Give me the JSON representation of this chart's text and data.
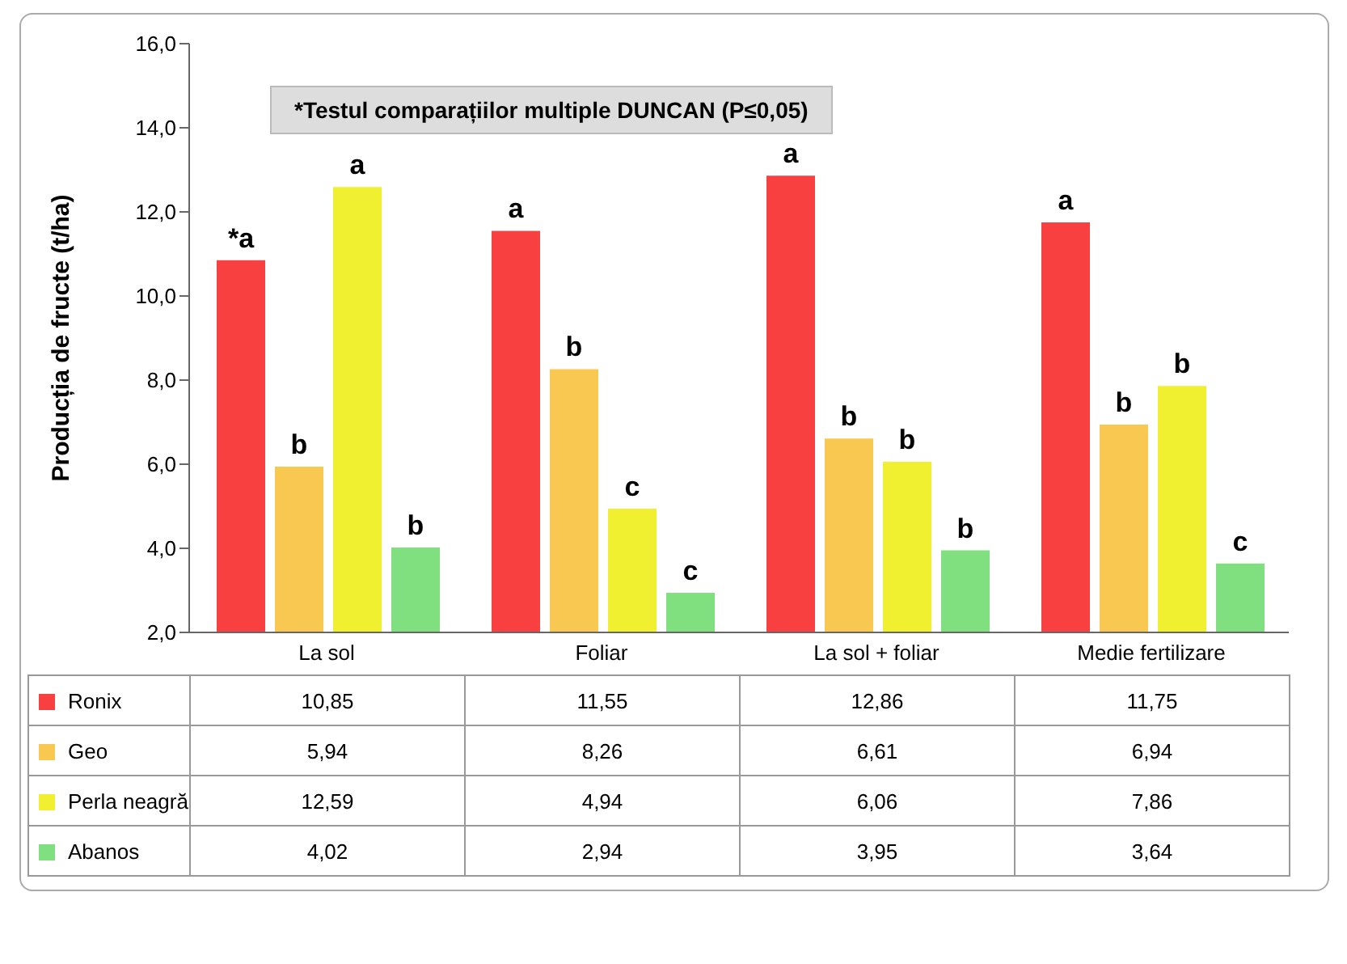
{
  "chart_data": {
    "type": "bar",
    "ylabel": "Producția de fructe (t/ha)",
    "categories": [
      "La sol",
      "Foliar",
      "La sol + foliar",
      "Medie fertilizare"
    ],
    "series": [
      {
        "name": "Ronix",
        "color": "#f84040",
        "values": [
          10.85,
          11.55,
          12.86,
          11.75
        ],
        "value_labels": [
          "10,85",
          "11,55",
          "12,86",
          "11,75"
        ]
      },
      {
        "name": "Geo",
        "color": "#f8c850",
        "values": [
          5.94,
          8.26,
          6.61,
          6.94
        ],
        "value_labels": [
          "5,94",
          "8,26",
          "6,61",
          "6,94"
        ]
      },
      {
        "name": "Perla neagră",
        "color": "#f0f030",
        "values": [
          12.59,
          4.94,
          6.06,
          7.86
        ],
        "value_labels": [
          "12,59",
          "4,94",
          "6,06",
          "7,86"
        ]
      },
      {
        "name": "Abanos",
        "color": "#80e080",
        "values": [
          4.02,
          2.94,
          3.95,
          3.64
        ],
        "value_labels": [
          "4,02",
          "2,94",
          "3,95",
          "3,64"
        ]
      }
    ],
    "ylim": [
      2,
      16
    ],
    "legend": "bottom",
    "yticks": [
      {
        "value": 2,
        "label": "2,0"
      },
      {
        "value": 4,
        "label": "4,0"
      },
      {
        "value": 6,
        "label": "6,0"
      },
      {
        "value": 8,
        "label": "8,0"
      },
      {
        "value": 10,
        "label": "10,0"
      },
      {
        "value": 12,
        "label": "12,0"
      },
      {
        "value": 14,
        "label": "14,0"
      },
      {
        "value": 16,
        "label": "16,0"
      }
    ],
    "annotations": [
      "*Testul comparațiilor multiple DUNCAN (P≤0,05)",
      "*a",
      "b",
      "a",
      "b",
      "a",
      "b",
      "c",
      "c",
      "a",
      "b",
      "b",
      "b",
      "a",
      "b",
      "b",
      "c"
    ]
  }
}
